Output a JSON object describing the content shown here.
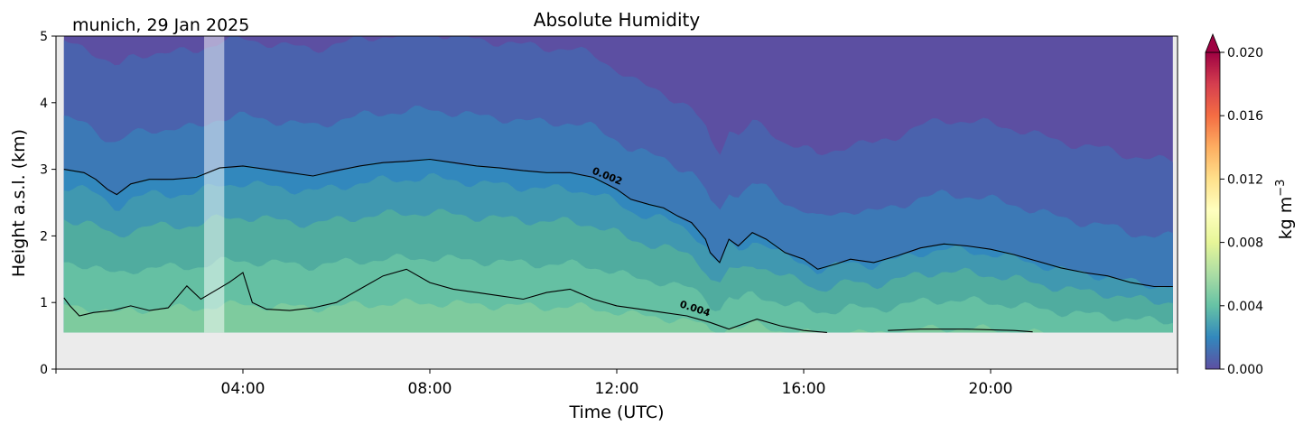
{
  "chart_data": {
    "type": "heatmap",
    "title": "Absolute Humidity",
    "subtitle": "munich, 29 Jan 2025",
    "xlabel": "Time (UTC)",
    "ylabel": "Height a.s.l. (km)",
    "xlim_hours": [
      0,
      24
    ],
    "ylim": [
      0,
      5
    ],
    "x_ticks": [
      {
        "hours": 4,
        "label": "04:00"
      },
      {
        "hours": 8,
        "label": "08:00"
      },
      {
        "hours": 12,
        "label": "12:00"
      },
      {
        "hours": 16,
        "label": "16:00"
      },
      {
        "hours": 20,
        "label": "20:00"
      }
    ],
    "y_ticks": [
      0,
      1,
      2,
      3,
      4,
      5
    ],
    "y_tick_labels": [
      "0",
      "1",
      "2",
      "3",
      "4",
      "5"
    ],
    "data_floor_km": 0.55,
    "data_start_hours": 0.17,
    "data_end_hours": 23.9,
    "masked_interval_hours": [
      3.17,
      3.6
    ],
    "colorbar": {
      "label": "kg m",
      "label_sup": "−3",
      "colormap": "Spectral_r",
      "min": 0.0,
      "max": 0.02,
      "extend": "max",
      "ticks": [
        0.0,
        0.004,
        0.008,
        0.012,
        0.016,
        0.02
      ],
      "tick_labels": [
        "0.000",
        "0.004",
        "0.008",
        "0.012",
        "0.016",
        "0.020"
      ]
    },
    "contour_labels": [
      "0.002",
      "0.004"
    ],
    "contours": [
      {
        "level": 0.002,
        "label": "0.002",
        "points": [
          [
            0.17,
            3.0
          ],
          [
            0.6,
            2.95
          ],
          [
            0.85,
            2.85
          ],
          [
            1.1,
            2.7
          ],
          [
            1.3,
            2.62
          ],
          [
            1.6,
            2.78
          ],
          [
            2.0,
            2.85
          ],
          [
            2.5,
            2.85
          ],
          [
            3.0,
            2.88
          ],
          [
            3.5,
            3.02
          ],
          [
            4.0,
            3.05
          ],
          [
            4.5,
            3.0
          ],
          [
            5.0,
            2.95
          ],
          [
            5.5,
            2.9
          ],
          [
            6.0,
            2.98
          ],
          [
            6.5,
            3.05
          ],
          [
            7.0,
            3.1
          ],
          [
            7.5,
            3.12
          ],
          [
            8.0,
            3.15
          ],
          [
            8.5,
            3.1
          ],
          [
            9.0,
            3.05
          ],
          [
            9.5,
            3.02
          ],
          [
            10.0,
            2.98
          ],
          [
            10.5,
            2.95
          ],
          [
            11.0,
            2.95
          ],
          [
            11.5,
            2.88
          ],
          [
            12.0,
            2.7
          ],
          [
            12.3,
            2.55
          ],
          [
            12.7,
            2.47
          ],
          [
            13.0,
            2.42
          ],
          [
            13.3,
            2.3
          ],
          [
            13.6,
            2.2
          ],
          [
            13.9,
            1.95
          ],
          [
            14.0,
            1.75
          ],
          [
            14.2,
            1.6
          ],
          [
            14.4,
            1.95
          ],
          [
            14.6,
            1.85
          ],
          [
            14.9,
            2.05
          ],
          [
            15.2,
            1.95
          ],
          [
            15.6,
            1.75
          ],
          [
            16.0,
            1.65
          ],
          [
            16.3,
            1.5
          ],
          [
            16.7,
            1.58
          ],
          [
            17.0,
            1.65
          ],
          [
            17.5,
            1.6
          ],
          [
            18.0,
            1.7
          ],
          [
            18.5,
            1.82
          ],
          [
            19.0,
            1.88
          ],
          [
            19.5,
            1.85
          ],
          [
            20.0,
            1.8
          ],
          [
            20.5,
            1.72
          ],
          [
            21.0,
            1.62
          ],
          [
            21.5,
            1.52
          ],
          [
            22.0,
            1.45
          ],
          [
            22.5,
            1.4
          ],
          [
            23.0,
            1.3
          ],
          [
            23.5,
            1.24
          ],
          [
            23.9,
            1.24
          ]
        ]
      },
      {
        "level": 0.004,
        "label": "0.004",
        "points": [
          [
            0.17,
            1.07
          ],
          [
            0.3,
            0.95
          ],
          [
            0.5,
            0.8
          ],
          [
            0.8,
            0.85
          ],
          [
            1.2,
            0.88
          ],
          [
            1.6,
            0.95
          ],
          [
            2.0,
            0.88
          ],
          [
            2.4,
            0.92
          ],
          [
            2.8,
            1.25
          ],
          [
            3.1,
            1.05
          ],
          [
            3.7,
            1.3
          ],
          [
            4.0,
            1.45
          ],
          [
            4.2,
            1.0
          ],
          [
            4.5,
            0.9
          ],
          [
            5.0,
            0.88
          ],
          [
            5.5,
            0.92
          ],
          [
            6.0,
            1.0
          ],
          [
            6.5,
            1.2
          ],
          [
            7.0,
            1.4
          ],
          [
            7.5,
            1.5
          ],
          [
            8.0,
            1.3
          ],
          [
            8.5,
            1.2
          ],
          [
            9.0,
            1.15
          ],
          [
            9.5,
            1.1
          ],
          [
            10.0,
            1.05
          ],
          [
            10.5,
            1.15
          ],
          [
            11.0,
            1.2
          ],
          [
            11.5,
            1.05
          ],
          [
            12.0,
            0.95
          ],
          [
            12.5,
            0.9
          ],
          [
            13.0,
            0.85
          ],
          [
            13.5,
            0.8
          ],
          [
            14.0,
            0.7
          ],
          [
            14.4,
            0.6
          ],
          [
            15.0,
            0.75
          ],
          [
            15.5,
            0.65
          ],
          [
            16.0,
            0.58
          ],
          [
            16.5,
            0.55
          ]
        ]
      },
      {
        "level": 0.004,
        "label": "",
        "points": [
          [
            17.8,
            0.58
          ],
          [
            18.5,
            0.6
          ],
          [
            19.5,
            0.6
          ],
          [
            20.5,
            0.58
          ],
          [
            20.9,
            0.56
          ]
        ]
      }
    ]
  }
}
